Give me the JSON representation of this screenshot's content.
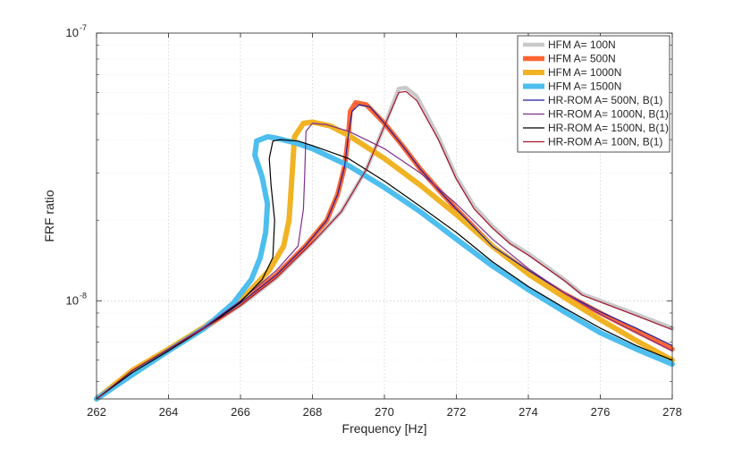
{
  "chart_data": {
    "type": "line",
    "xlabel": "Frequency [Hz]",
    "ylabel": "FRF ratio",
    "xlim": [
      262,
      278
    ],
    "ylim": [
      4.3e-09,
      1e-07
    ],
    "yscale": "log",
    "grid": true,
    "x_ticks": [
      262,
      264,
      266,
      268,
      270,
      272,
      274,
      276,
      278
    ],
    "x_tick_labels": [
      "262",
      "264",
      "266",
      "268",
      "270",
      "272",
      "274",
      "276",
      "278"
    ],
    "y_major_ticks": [
      {
        "value": 1e-08,
        "base": "10",
        "exp": "-8"
      },
      {
        "value": 1e-07,
        "base": "10",
        "exp": "-7"
      }
    ],
    "y_minor_ticks": [
      5e-09,
      6e-09,
      7e-09,
      8e-09,
      9e-09,
      2e-08,
      3e-08,
      4e-08,
      5e-08,
      6e-08,
      7e-08,
      8e-08,
      9e-08
    ],
    "legend_position": "top-right",
    "series": [
      {
        "name": "HFM A= 100N",
        "color": "#c9c9c9",
        "width": 4.5,
        "points": [
          [
            262,
            4.3e-09
          ],
          [
            263,
            5.5e-09
          ],
          [
            264,
            6.6e-09
          ],
          [
            265,
            7.9e-09
          ],
          [
            266,
            9.6e-09
          ],
          [
            267,
            1.22e-08
          ],
          [
            268,
            1.65e-08
          ],
          [
            268.8,
            2.15e-08
          ],
          [
            269.5,
            3.1e-08
          ],
          [
            270,
            4.5e-08
          ],
          [
            270.4,
            6.2e-08
          ],
          [
            270.6,
            6.25e-08
          ],
          [
            270.9,
            5.8e-08
          ],
          [
            271.5,
            4.1e-08
          ],
          [
            272,
            2.9e-08
          ],
          [
            272.5,
            2.25e-08
          ],
          [
            273,
            1.9e-08
          ],
          [
            273.5,
            1.65e-08
          ],
          [
            274,
            1.5e-08
          ],
          [
            275,
            1.2e-08
          ],
          [
            275.5,
            1.06e-08
          ],
          [
            276,
            1e-08
          ],
          [
            277,
            8.9e-09
          ],
          [
            278,
            7.9e-09
          ]
        ]
      },
      {
        "name": "HFM A= 500N",
        "color": "#ff6633",
        "width": 5.5,
        "points": [
          [
            262,
            4.3e-09
          ],
          [
            263,
            5.5e-09
          ],
          [
            264,
            6.6e-09
          ],
          [
            265,
            7.9e-09
          ],
          [
            266,
            9.8e-09
          ],
          [
            267,
            1.25e-08
          ],
          [
            267.8,
            1.6e-08
          ],
          [
            268.4,
            2e-08
          ],
          [
            268.7,
            2.5e-08
          ],
          [
            268.9,
            3.2e-08
          ],
          [
            269.0,
            4.2e-08
          ],
          [
            269.05,
            5.1e-08
          ],
          [
            269.2,
            5.5e-08
          ],
          [
            269.5,
            5.4e-08
          ],
          [
            270,
            4.6e-08
          ],
          [
            270.5,
            3.8e-08
          ],
          [
            271,
            3.1e-08
          ],
          [
            271.5,
            2.6e-08
          ],
          [
            272,
            2.2e-08
          ],
          [
            273,
            1.6e-08
          ],
          [
            274,
            1.28e-08
          ],
          [
            275,
            1.06e-08
          ],
          [
            276,
            9e-09
          ],
          [
            277,
            7.7e-09
          ],
          [
            278,
            6.6e-09
          ]
        ]
      },
      {
        "name": "HFM A= 1000N",
        "color": "#f0b323",
        "width": 6,
        "points": [
          [
            262,
            4.3e-09
          ],
          [
            263,
            5.5e-09
          ],
          [
            264,
            6.6e-09
          ],
          [
            265,
            8e-09
          ],
          [
            266,
            1e-08
          ],
          [
            266.8,
            1.3e-08
          ],
          [
            267.2,
            1.6e-08
          ],
          [
            267.35,
            2e-08
          ],
          [
            267.4,
            2.5e-08
          ],
          [
            267.45,
            3.2e-08
          ],
          [
            267.5,
            4.1e-08
          ],
          [
            267.75,
            4.6e-08
          ],
          [
            268,
            4.65e-08
          ],
          [
            268.5,
            4.5e-08
          ],
          [
            269,
            4.15e-08
          ],
          [
            270,
            3.4e-08
          ],
          [
            271,
            2.7e-08
          ],
          [
            272,
            2.1e-08
          ],
          [
            273,
            1.6e-08
          ],
          [
            274,
            1.26e-08
          ],
          [
            275,
            1.03e-08
          ],
          [
            276,
            8.5e-09
          ],
          [
            277,
            7.1e-09
          ],
          [
            278,
            6e-09
          ]
        ]
      },
      {
        "name": "HFM A= 1500N",
        "color": "#4dbeee",
        "width": 6,
        "points": [
          [
            262,
            4.3e-09
          ],
          [
            263,
            5.3e-09
          ],
          [
            264,
            6.5e-09
          ],
          [
            265,
            7.9e-09
          ],
          [
            265.8,
            9.8e-09
          ],
          [
            266.3,
            1.2e-08
          ],
          [
            266.55,
            1.45e-08
          ],
          [
            266.7,
            1.8e-08
          ],
          [
            266.75,
            2.3e-08
          ],
          [
            266.6,
            2.9e-08
          ],
          [
            266.4,
            3.5e-08
          ],
          [
            266.45,
            3.95e-08
          ],
          [
            266.75,
            4.1e-08
          ],
          [
            267,
            4.05e-08
          ],
          [
            267.5,
            3.9e-08
          ],
          [
            268,
            3.7e-08
          ],
          [
            269,
            3.2e-08
          ],
          [
            270,
            2.65e-08
          ],
          [
            271,
            2.15e-08
          ],
          [
            272,
            1.7e-08
          ],
          [
            273,
            1.35e-08
          ],
          [
            274,
            1.1e-08
          ],
          [
            275,
            9.1e-09
          ],
          [
            276,
            7.6e-09
          ],
          [
            277,
            6.6e-09
          ],
          [
            278,
            5.8e-09
          ]
        ]
      },
      {
        "name": "HR-ROM A= 500N, B(1)",
        "color": "#1f1fa0",
        "width": 1.2,
        "points": [
          [
            262,
            4.3e-09
          ],
          [
            263,
            5.5e-09
          ],
          [
            264,
            6.6e-09
          ],
          [
            265,
            7.9e-09
          ],
          [
            266,
            9.8e-09
          ],
          [
            267,
            1.25e-08
          ],
          [
            267.8,
            1.6e-08
          ],
          [
            268.4,
            2e-08
          ],
          [
            268.7,
            2.5e-08
          ],
          [
            268.9,
            3.2e-08
          ],
          [
            269.0,
            4.2e-08
          ],
          [
            269.1,
            5.1e-08
          ],
          [
            269.3,
            5.4e-08
          ],
          [
            269.6,
            5.3e-08
          ],
          [
            270,
            4.6e-08
          ],
          [
            270.5,
            3.8e-08
          ],
          [
            271,
            3.1e-08
          ],
          [
            271.5,
            2.6e-08
          ],
          [
            272,
            2.2e-08
          ],
          [
            273,
            1.6e-08
          ],
          [
            274,
            1.3e-08
          ],
          [
            275,
            1.07e-08
          ],
          [
            276,
            9.1e-09
          ],
          [
            277,
            7.9e-09
          ],
          [
            278,
            6.8e-09
          ]
        ]
      },
      {
        "name": "HR-ROM A= 1000N, B(1)",
        "color": "#7e2f8e",
        "width": 1.2,
        "points": [
          [
            262,
            4.3e-09
          ],
          [
            263,
            5.5e-09
          ],
          [
            264,
            6.6e-09
          ],
          [
            265,
            8e-09
          ],
          [
            266,
            1e-08
          ],
          [
            267,
            1.3e-08
          ],
          [
            267.6,
            1.6e-08
          ],
          [
            267.75,
            2.2e-08
          ],
          [
            267.78,
            2.8e-08
          ],
          [
            267.8,
            3.5e-08
          ],
          [
            267.82,
            4.3e-08
          ],
          [
            268,
            4.6e-08
          ],
          [
            268.4,
            4.55e-08
          ],
          [
            269,
            4.3e-08
          ],
          [
            270,
            3.7e-08
          ],
          [
            271,
            3e-08
          ],
          [
            272,
            2.3e-08
          ],
          [
            273,
            1.7e-08
          ],
          [
            274,
            1.32e-08
          ],
          [
            275,
            1.07e-08
          ],
          [
            276,
            8.9e-09
          ],
          [
            277,
            7.6e-09
          ],
          [
            278,
            6.5e-09
          ]
        ]
      },
      {
        "name": "HR-ROM A= 1500N, B(1)",
        "color": "#000000",
        "width": 1.2,
        "points": [
          [
            262,
            4.3e-09
          ],
          [
            263,
            5.4e-09
          ],
          [
            264,
            6.5e-09
          ],
          [
            265,
            7.9e-09
          ],
          [
            266,
            9.9e-09
          ],
          [
            266.6,
            1.2e-08
          ],
          [
            266.9,
            1.45e-08
          ],
          [
            266.95,
            2e-08
          ],
          [
            266.85,
            2.7e-08
          ],
          [
            266.8,
            3.4e-08
          ],
          [
            266.9,
            3.95e-08
          ],
          [
            267.1,
            4e-08
          ],
          [
            267.6,
            3.95e-08
          ],
          [
            268,
            3.8e-08
          ],
          [
            269,
            3.4e-08
          ],
          [
            270,
            2.8e-08
          ],
          [
            271,
            2.25e-08
          ],
          [
            272,
            1.8e-08
          ],
          [
            273,
            1.4e-08
          ],
          [
            274,
            1.13e-08
          ],
          [
            275,
            9.4e-09
          ],
          [
            276,
            7.9e-09
          ],
          [
            277,
            6.8e-09
          ],
          [
            278,
            6e-09
          ]
        ]
      },
      {
        "name": "HR-ROM A= 100N, B(1)",
        "color": "#a2142f",
        "width": 1.2,
        "points": [
          [
            262,
            4.3e-09
          ],
          [
            263,
            5.5e-09
          ],
          [
            264,
            6.6e-09
          ],
          [
            265,
            7.9e-09
          ],
          [
            266,
            9.6e-09
          ],
          [
            267,
            1.22e-08
          ],
          [
            268,
            1.65e-08
          ],
          [
            268.8,
            2.15e-08
          ],
          [
            269.5,
            3.1e-08
          ],
          [
            270,
            4.5e-08
          ],
          [
            270.4,
            6e-08
          ],
          [
            270.6,
            6.05e-08
          ],
          [
            270.9,
            5.6e-08
          ],
          [
            271.5,
            4e-08
          ],
          [
            272,
            2.85e-08
          ],
          [
            272.5,
            2.2e-08
          ],
          [
            273,
            1.87e-08
          ],
          [
            273.5,
            1.63e-08
          ],
          [
            274,
            1.48e-08
          ],
          [
            275,
            1.19e-08
          ],
          [
            275.5,
            1.05e-08
          ],
          [
            276,
            9.9e-09
          ],
          [
            277,
            8.8e-09
          ],
          [
            278,
            7.8e-09
          ]
        ]
      }
    ]
  }
}
